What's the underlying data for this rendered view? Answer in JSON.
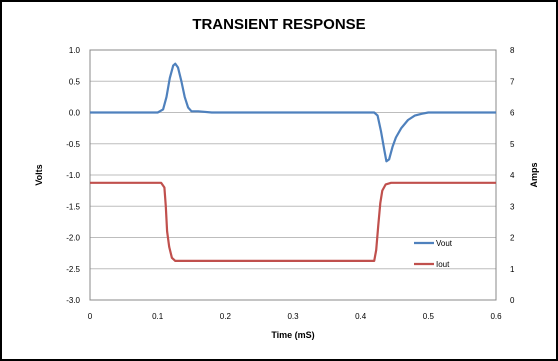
{
  "chart_data": {
    "type": "line",
    "title": "TRANSIENT RESPONSE",
    "xlabel": "Time (mS)",
    "ylabel_left": "Volts",
    "ylabel_right": "Amps",
    "xlim": [
      0,
      0.6
    ],
    "ylim_left": [
      -3.0,
      1.0
    ],
    "ylim_right": [
      0,
      8
    ],
    "x_ticks": [
      "0",
      "0.1",
      "0.2",
      "0.3",
      "0.4",
      "0.5",
      "0.6"
    ],
    "y_left_ticks": [
      "1.0",
      "0.5",
      "0.0",
      "-0.5",
      "-1.0",
      "-1.5",
      "-2.0",
      "-2.5",
      "-3.0"
    ],
    "y_right_ticks": [
      "8",
      "7",
      "6",
      "5",
      "4",
      "3",
      "2",
      "1",
      "0"
    ],
    "grid": "horizontal",
    "legend": "bottom-right",
    "series": [
      {
        "name": "Vout",
        "axis": "left",
        "color": "#4f81bd",
        "points": [
          [
            0,
            0.0
          ],
          [
            0.05,
            0.0
          ],
          [
            0.1,
            0.0
          ],
          [
            0.108,
            0.05
          ],
          [
            0.113,
            0.25
          ],
          [
            0.118,
            0.55
          ],
          [
            0.123,
            0.75
          ],
          [
            0.126,
            0.78
          ],
          [
            0.13,
            0.72
          ],
          [
            0.135,
            0.5
          ],
          [
            0.14,
            0.25
          ],
          [
            0.145,
            0.08
          ],
          [
            0.15,
            0.02
          ],
          [
            0.16,
            0.02
          ],
          [
            0.18,
            0.0
          ],
          [
            0.25,
            0.0
          ],
          [
            0.35,
            0.0
          ],
          [
            0.42,
            0.0
          ],
          [
            0.425,
            -0.05
          ],
          [
            0.43,
            -0.3
          ],
          [
            0.435,
            -0.6
          ],
          [
            0.438,
            -0.78
          ],
          [
            0.442,
            -0.75
          ],
          [
            0.447,
            -0.55
          ],
          [
            0.452,
            -0.4
          ],
          [
            0.46,
            -0.25
          ],
          [
            0.47,
            -0.12
          ],
          [
            0.48,
            -0.05
          ],
          [
            0.49,
            -0.02
          ],
          [
            0.5,
            0.0
          ],
          [
            0.6,
            0.0
          ]
        ]
      },
      {
        "name": "Iout",
        "axis": "right",
        "color": "#c0504d",
        "points": [
          [
            0,
            3.75
          ],
          [
            0.05,
            3.75
          ],
          [
            0.105,
            3.75
          ],
          [
            0.11,
            3.6
          ],
          [
            0.112,
            3.0
          ],
          [
            0.114,
            2.2
          ],
          [
            0.117,
            1.7
          ],
          [
            0.121,
            1.35
          ],
          [
            0.126,
            1.25
          ],
          [
            0.135,
            1.25
          ],
          [
            0.2,
            1.25
          ],
          [
            0.3,
            1.25
          ],
          [
            0.4,
            1.25
          ],
          [
            0.42,
            1.25
          ],
          [
            0.423,
            1.6
          ],
          [
            0.426,
            2.4
          ],
          [
            0.429,
            3.1
          ],
          [
            0.432,
            3.5
          ],
          [
            0.437,
            3.7
          ],
          [
            0.445,
            3.75
          ],
          [
            0.5,
            3.75
          ],
          [
            0.6,
            3.75
          ]
        ]
      }
    ]
  }
}
